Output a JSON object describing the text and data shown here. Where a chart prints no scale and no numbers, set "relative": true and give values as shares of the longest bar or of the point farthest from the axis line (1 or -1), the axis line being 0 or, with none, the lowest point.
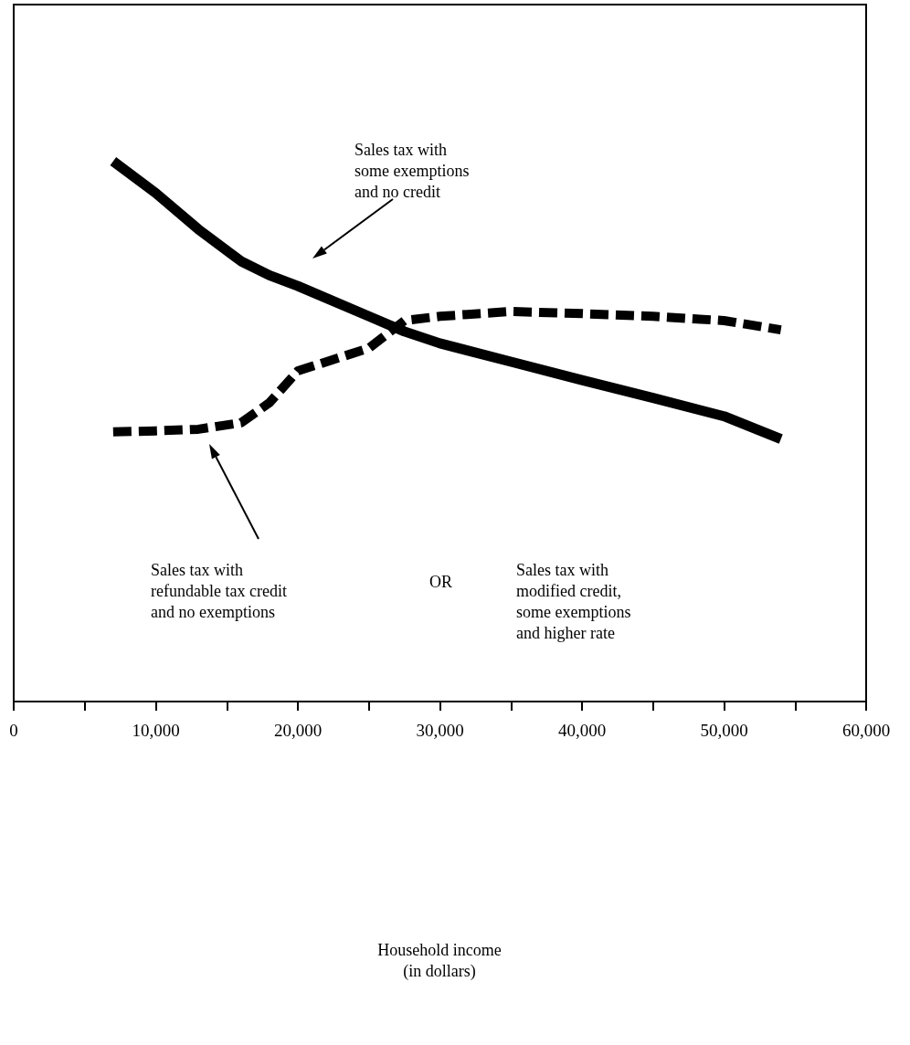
{
  "chart_data": {
    "type": "line",
    "relative": true,
    "x": [
      7000,
      10000,
      13000,
      16000,
      18000,
      20000,
      25000,
      27500,
      30000,
      35000,
      40000,
      45000,
      50000,
      54000
    ],
    "xlim": [
      0,
      60000
    ],
    "xticks": [
      0,
      {
        "value": 5000,
        "label": null
      },
      "10,000",
      {
        "value": 15000,
        "label": null
      },
      {
        "value": 20000,
        "label": "20,000"
      },
      {
        "value": 25000,
        "label": null
      },
      {
        "value": 30000,
        "label": "30,000"
      },
      {
        "value": 35000,
        "label": null
      },
      {
        "value": 40000,
        "label": "40,000"
      },
      {
        "value": 45000,
        "label": null
      },
      {
        "value": 50000,
        "label": "50,000"
      },
      {
        "value": 55000,
        "label": null
      },
      {
        "value": 60000,
        "label": "60,000"
      }
    ],
    "series": [
      {
        "color": "#000000",
        "line_style": "solid",
        "values": [
          1,
          0.941,
          0.874,
          0.815,
          0.789,
          0.769,
          0.713,
          0.685,
          0.663,
          0.629,
          0.595,
          0.562,
          0.528,
          0.486
        ]
      },
      {
        "color": "#000000",
        "line_style": "dashed",
        "values": [
          0.499,
          0.501,
          0.504,
          0.516,
          0.553,
          0.612,
          0.654,
          0.705,
          0.713,
          0.722,
          0.718,
          0.713,
          0.705,
          0.688
        ]
      }
    ],
    "annotations": [
      "Sales tax with\nsome exemptions\nand no credit",
      "Sales tax with\nrefundable tax credit\nand no exemptions",
      "OR",
      "Sales tax with\nmodified credit,\nsome exemptions\nand higher rate",
      "Household income\n(in dollars)"
    ],
    "grid": false,
    "marker": "none",
    "tick_labels": "x"
  }
}
